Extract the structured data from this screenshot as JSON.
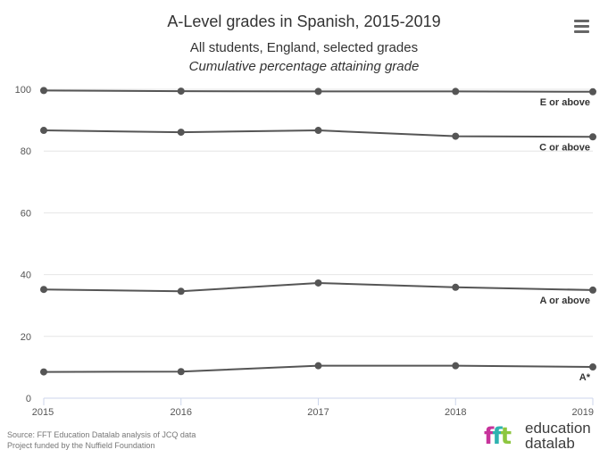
{
  "header": {
    "title": "A-Level grades in Spanish, 2015-2019",
    "subtitle_line1": "All students, England, selected grades",
    "subtitle_line2": "Cumulative percentage attaining grade"
  },
  "footer": {
    "source_line1": "Source: FFT Education Datalab analysis of JCQ data",
    "source_line2": "Project funded by the Nuffield Foundation",
    "logo_line1": "education",
    "logo_line2": "datalab"
  },
  "colors": {
    "line": "#555555",
    "grid": "#e6e6e6",
    "axis": "#ccd6eb",
    "tick_text": "#555555",
    "label_text": "#333333"
  },
  "chart_data": {
    "type": "line",
    "title": "A-Level grades in Spanish, 2015-2019",
    "subtitle": "All students, England, selected grades — Cumulative percentage attaining grade",
    "x": [
      "2015",
      "2016",
      "2017",
      "2018",
      "2019"
    ],
    "ylim": [
      0,
      100
    ],
    "yticks": [
      0,
      20,
      40,
      60,
      80,
      100
    ],
    "xlabel": "",
    "ylabel": "",
    "grid": true,
    "series": [
      {
        "name": "E or above",
        "values": [
          99.6,
          99.4,
          99.3,
          99.3,
          99.2
        ]
      },
      {
        "name": "C or above",
        "values": [
          86.7,
          86.1,
          86.7,
          84.8,
          84.6
        ]
      },
      {
        "name": "A or above",
        "values": [
          35.2,
          34.6,
          37.3,
          35.9,
          35.0
        ]
      },
      {
        "name": "A*",
        "values": [
          8.5,
          8.6,
          10.5,
          10.5,
          10.1
        ]
      }
    ]
  }
}
